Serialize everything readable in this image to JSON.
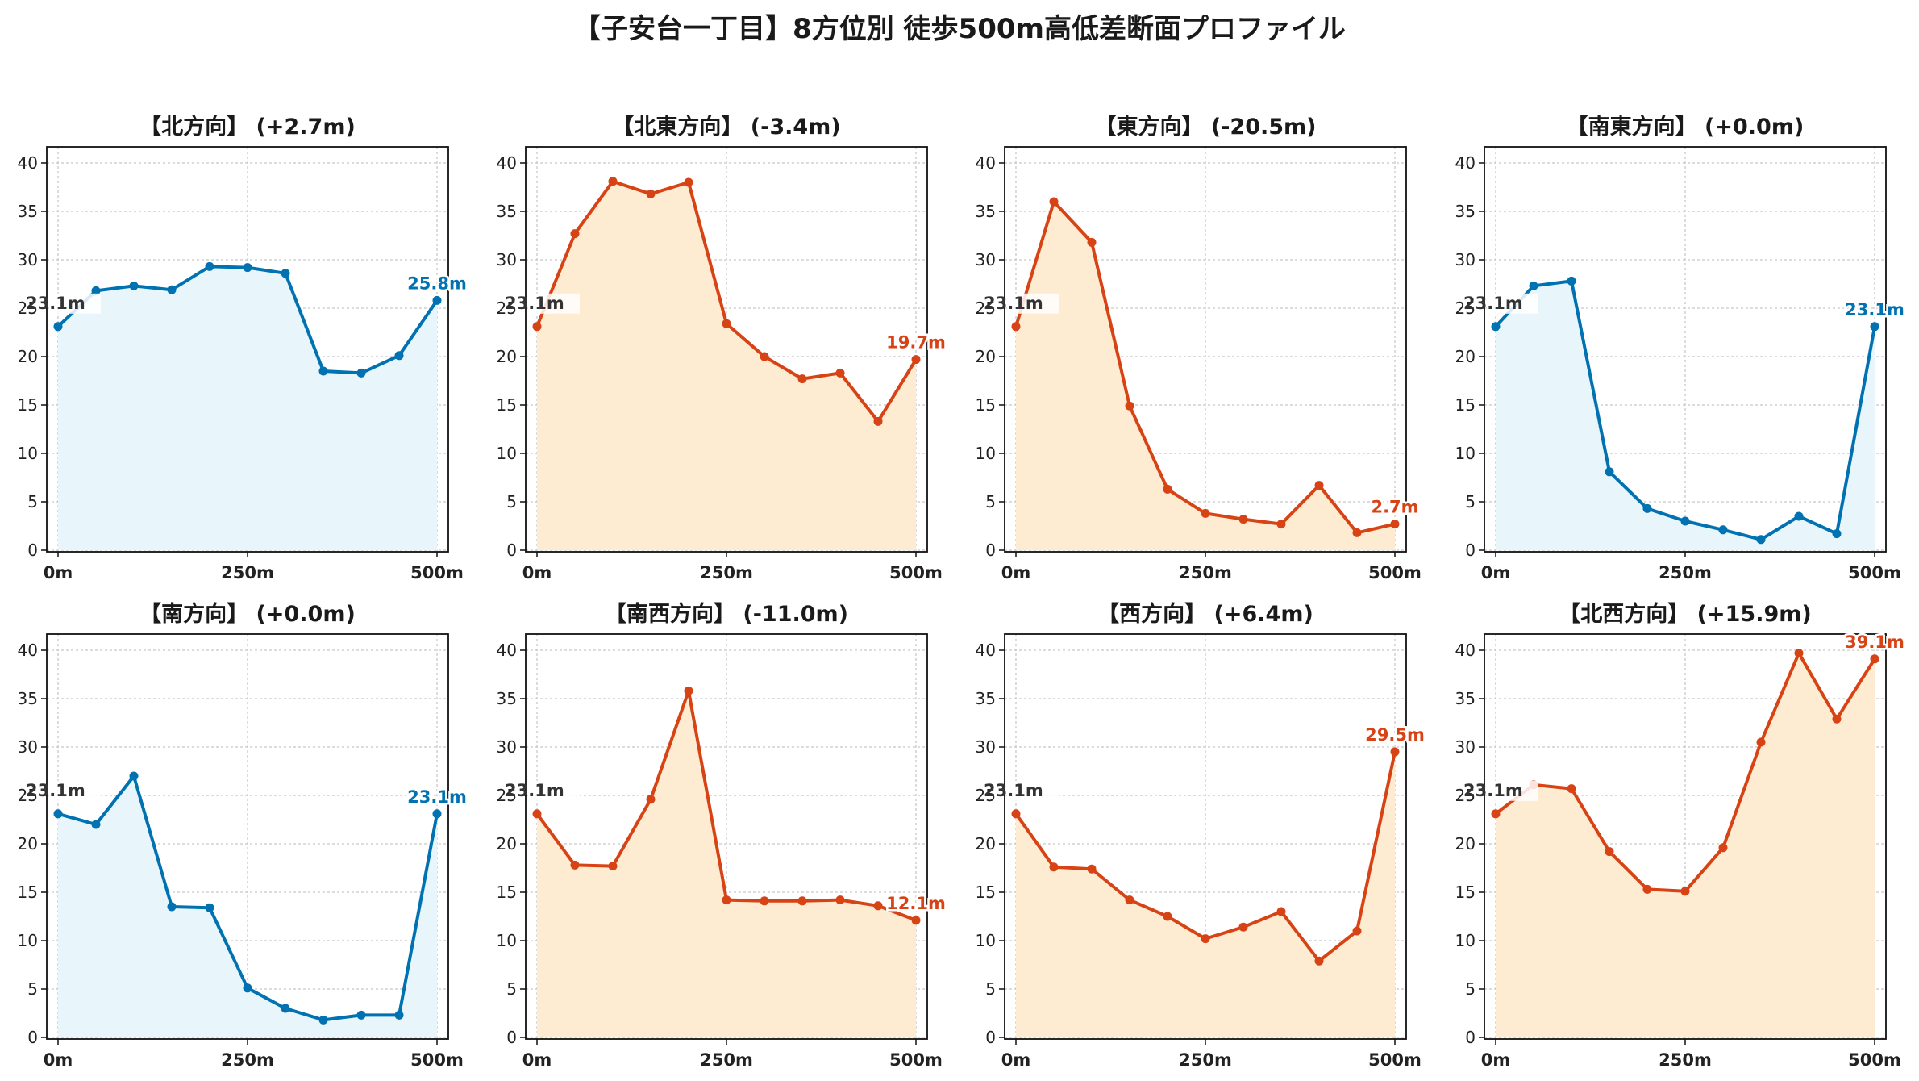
{
  "title": "【子安台一丁目】8方位別 徒歩500m高低差断面プロファイル",
  "chart_data": [
    {
      "type": "area",
      "title": "【北方向】 (+2.7m)",
      "color": "#0072b2",
      "fill": "#e8f6fc",
      "x": [
        0,
        50,
        100,
        150,
        200,
        250,
        300,
        350,
        400,
        450,
        500
      ],
      "values": [
        23.1,
        26.8,
        27.3,
        26.9,
        29.3,
        29.2,
        28.6,
        18.5,
        18.3,
        20.1,
        25.8
      ],
      "start_label": "23.1m",
      "end_label": "25.8m",
      "x_ticks": [
        "0m",
        "250m",
        "500m"
      ],
      "y_ticks": [
        "0",
        "5",
        "10",
        "15",
        "20",
        "25",
        "30",
        "35",
        "40"
      ],
      "ylim": [
        0,
        41.5
      ],
      "grid": true
    },
    {
      "type": "area",
      "title": "【北東方向】 (-3.4m)",
      "color": "#d84315",
      "fill": "#fdecd2",
      "x": [
        0,
        50,
        100,
        150,
        200,
        250,
        300,
        350,
        400,
        450,
        500
      ],
      "values": [
        23.1,
        32.7,
        38.1,
        36.8,
        38.0,
        23.4,
        20.0,
        17.7,
        18.3,
        13.3,
        19.7
      ],
      "start_label": "23.1m",
      "end_label": "19.7m",
      "x_ticks": [
        "0m",
        "250m",
        "500m"
      ],
      "y_ticks": [
        "0",
        "5",
        "10",
        "15",
        "20",
        "25",
        "30",
        "35",
        "40"
      ],
      "ylim": [
        0,
        41.5
      ],
      "grid": true
    },
    {
      "type": "area",
      "title": "【東方向】 (-20.5m)",
      "color": "#d84315",
      "fill": "#fdecd2",
      "x": [
        0,
        50,
        100,
        150,
        200,
        250,
        300,
        350,
        400,
        450,
        500
      ],
      "values": [
        23.1,
        36.0,
        31.8,
        14.9,
        6.3,
        3.8,
        3.2,
        2.7,
        6.7,
        1.8,
        2.7
      ],
      "start_label": "23.1m",
      "end_label": "2.7m",
      "x_ticks": [
        "0m",
        "250m",
        "500m"
      ],
      "y_ticks": [
        "0",
        "5",
        "10",
        "15",
        "20",
        "25",
        "30",
        "35",
        "40"
      ],
      "ylim": [
        0,
        41.5
      ],
      "grid": true
    },
    {
      "type": "area",
      "title": "【南東方向】 (+0.0m)",
      "color": "#0072b2",
      "fill": "#e8f6fc",
      "x": [
        0,
        50,
        100,
        150,
        200,
        250,
        300,
        350,
        400,
        450,
        500
      ],
      "values": [
        23.1,
        27.3,
        27.8,
        8.1,
        4.3,
        3.0,
        2.1,
        1.1,
        3.5,
        1.7,
        23.1
      ],
      "start_label": "23.1m",
      "end_label": "23.1m",
      "x_ticks": [
        "0m",
        "250m",
        "500m"
      ],
      "y_ticks": [
        "0",
        "5",
        "10",
        "15",
        "20",
        "25",
        "30",
        "35",
        "40"
      ],
      "ylim": [
        0,
        41.5
      ],
      "grid": true
    },
    {
      "type": "area",
      "title": "【南方向】 (+0.0m)",
      "color": "#0072b2",
      "fill": "#e8f6fc",
      "x": [
        0,
        50,
        100,
        150,
        200,
        250,
        300,
        350,
        400,
        450,
        500
      ],
      "values": [
        23.1,
        22.0,
        27.0,
        13.5,
        13.4,
        5.1,
        3.0,
        1.8,
        2.3,
        2.3,
        23.1
      ],
      "start_label": "23.1m",
      "end_label": "23.1m",
      "x_ticks": [
        "0m",
        "250m",
        "500m"
      ],
      "y_ticks": [
        "0",
        "5",
        "10",
        "15",
        "20",
        "25",
        "30",
        "35",
        "40"
      ],
      "ylim": [
        0,
        41.5
      ],
      "grid": true
    },
    {
      "type": "area",
      "title": "【南西方向】 (-11.0m)",
      "color": "#d84315",
      "fill": "#fdecd2",
      "x": [
        0,
        50,
        100,
        150,
        200,
        250,
        300,
        350,
        400,
        450,
        500
      ],
      "values": [
        23.1,
        17.8,
        17.7,
        24.6,
        35.8,
        14.2,
        14.1,
        14.1,
        14.2,
        13.6,
        12.1
      ],
      "start_label": "23.1m",
      "end_label": "12.1m",
      "x_ticks": [
        "0m",
        "250m",
        "500m"
      ],
      "y_ticks": [
        "0",
        "5",
        "10",
        "15",
        "20",
        "25",
        "30",
        "35",
        "40"
      ],
      "ylim": [
        0,
        41.5
      ],
      "grid": true
    },
    {
      "type": "area",
      "title": "【西方向】 (+6.4m)",
      "color": "#d84315",
      "fill": "#fdecd2",
      "x": [
        0,
        50,
        100,
        150,
        200,
        250,
        300,
        350,
        400,
        450,
        500
      ],
      "values": [
        23.1,
        17.6,
        17.4,
        14.2,
        12.5,
        10.2,
        11.4,
        13.0,
        7.9,
        11.0,
        29.5
      ],
      "start_label": "23.1m",
      "end_label": "29.5m",
      "x_ticks": [
        "0m",
        "250m",
        "500m"
      ],
      "y_ticks": [
        "0",
        "5",
        "10",
        "15",
        "20",
        "25",
        "30",
        "35",
        "40"
      ],
      "ylim": [
        0,
        41.5
      ],
      "grid": true
    },
    {
      "type": "area",
      "title": "【北西方向】 (+15.9m)",
      "color": "#d84315",
      "fill": "#fdecd2",
      "x": [
        0,
        50,
        100,
        150,
        200,
        250,
        300,
        350,
        400,
        450,
        500
      ],
      "values": [
        23.1,
        26.1,
        25.7,
        19.2,
        15.3,
        15.1,
        19.6,
        30.5,
        39.7,
        32.9,
        39.1
      ],
      "start_label": "23.1m",
      "end_label": "39.1m",
      "x_ticks": [
        "0m",
        "250m",
        "500m"
      ],
      "y_ticks": [
        "0",
        "5",
        "10",
        "15",
        "20",
        "25",
        "30",
        "35",
        "40"
      ],
      "ylim": [
        0,
        41.5
      ],
      "grid": true
    }
  ]
}
